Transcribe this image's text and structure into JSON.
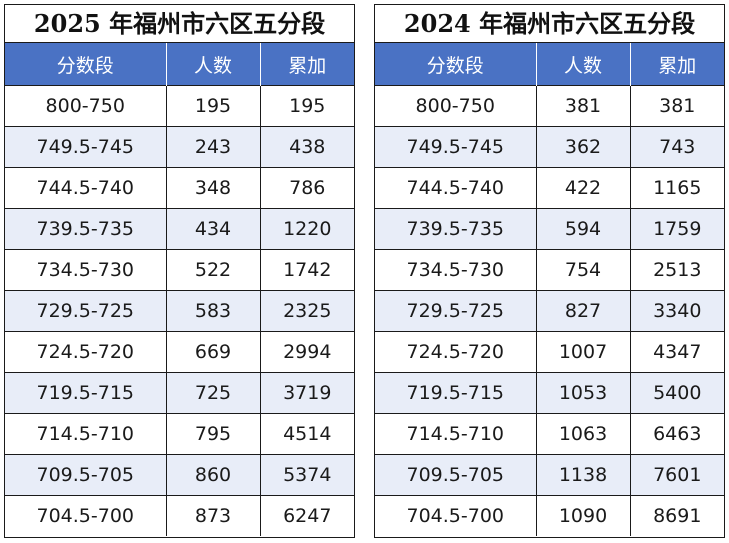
{
  "tables": [
    {
      "title": "2025 年福州市六区五分段",
      "headers": [
        "分数段",
        "人数",
        "累加"
      ],
      "rows": [
        [
          "800-750",
          "195",
          "195"
        ],
        [
          "749.5-745",
          "243",
          "438"
        ],
        [
          "744.5-740",
          "348",
          "786"
        ],
        [
          "739.5-735",
          "434",
          "1220"
        ],
        [
          "734.5-730",
          "522",
          "1742"
        ],
        [
          "729.5-725",
          "583",
          "2325"
        ],
        [
          "724.5-720",
          "669",
          "2994"
        ],
        [
          "719.5-715",
          "725",
          "3719"
        ],
        [
          "714.5-710",
          "795",
          "4514"
        ],
        [
          "709.5-705",
          "860",
          "5374"
        ],
        [
          "704.5-700",
          "873",
          "6247"
        ]
      ]
    },
    {
      "title": "2024 年福州市六区五分段",
      "headers": [
        "分数段",
        "人数",
        "累加"
      ],
      "rows": [
        [
          "800-750",
          "381",
          "381"
        ],
        [
          "749.5-745",
          "362",
          "743"
        ],
        [
          "744.5-740",
          "422",
          "1165"
        ],
        [
          "739.5-735",
          "594",
          "1759"
        ],
        [
          "734.5-730",
          "754",
          "2513"
        ],
        [
          "729.5-725",
          "827",
          "3340"
        ],
        [
          "724.5-720",
          "1007",
          "4347"
        ],
        [
          "719.5-715",
          "1053",
          "5400"
        ],
        [
          "714.5-710",
          "1063",
          "6463"
        ],
        [
          "709.5-705",
          "1138",
          "7601"
        ],
        [
          "704.5-700",
          "1090",
          "8691"
        ]
      ]
    }
  ],
  "colors": {
    "header_bg": "#4a72c4",
    "alt_row_bg": "#e8edf8",
    "border": "#1a1a1a"
  }
}
